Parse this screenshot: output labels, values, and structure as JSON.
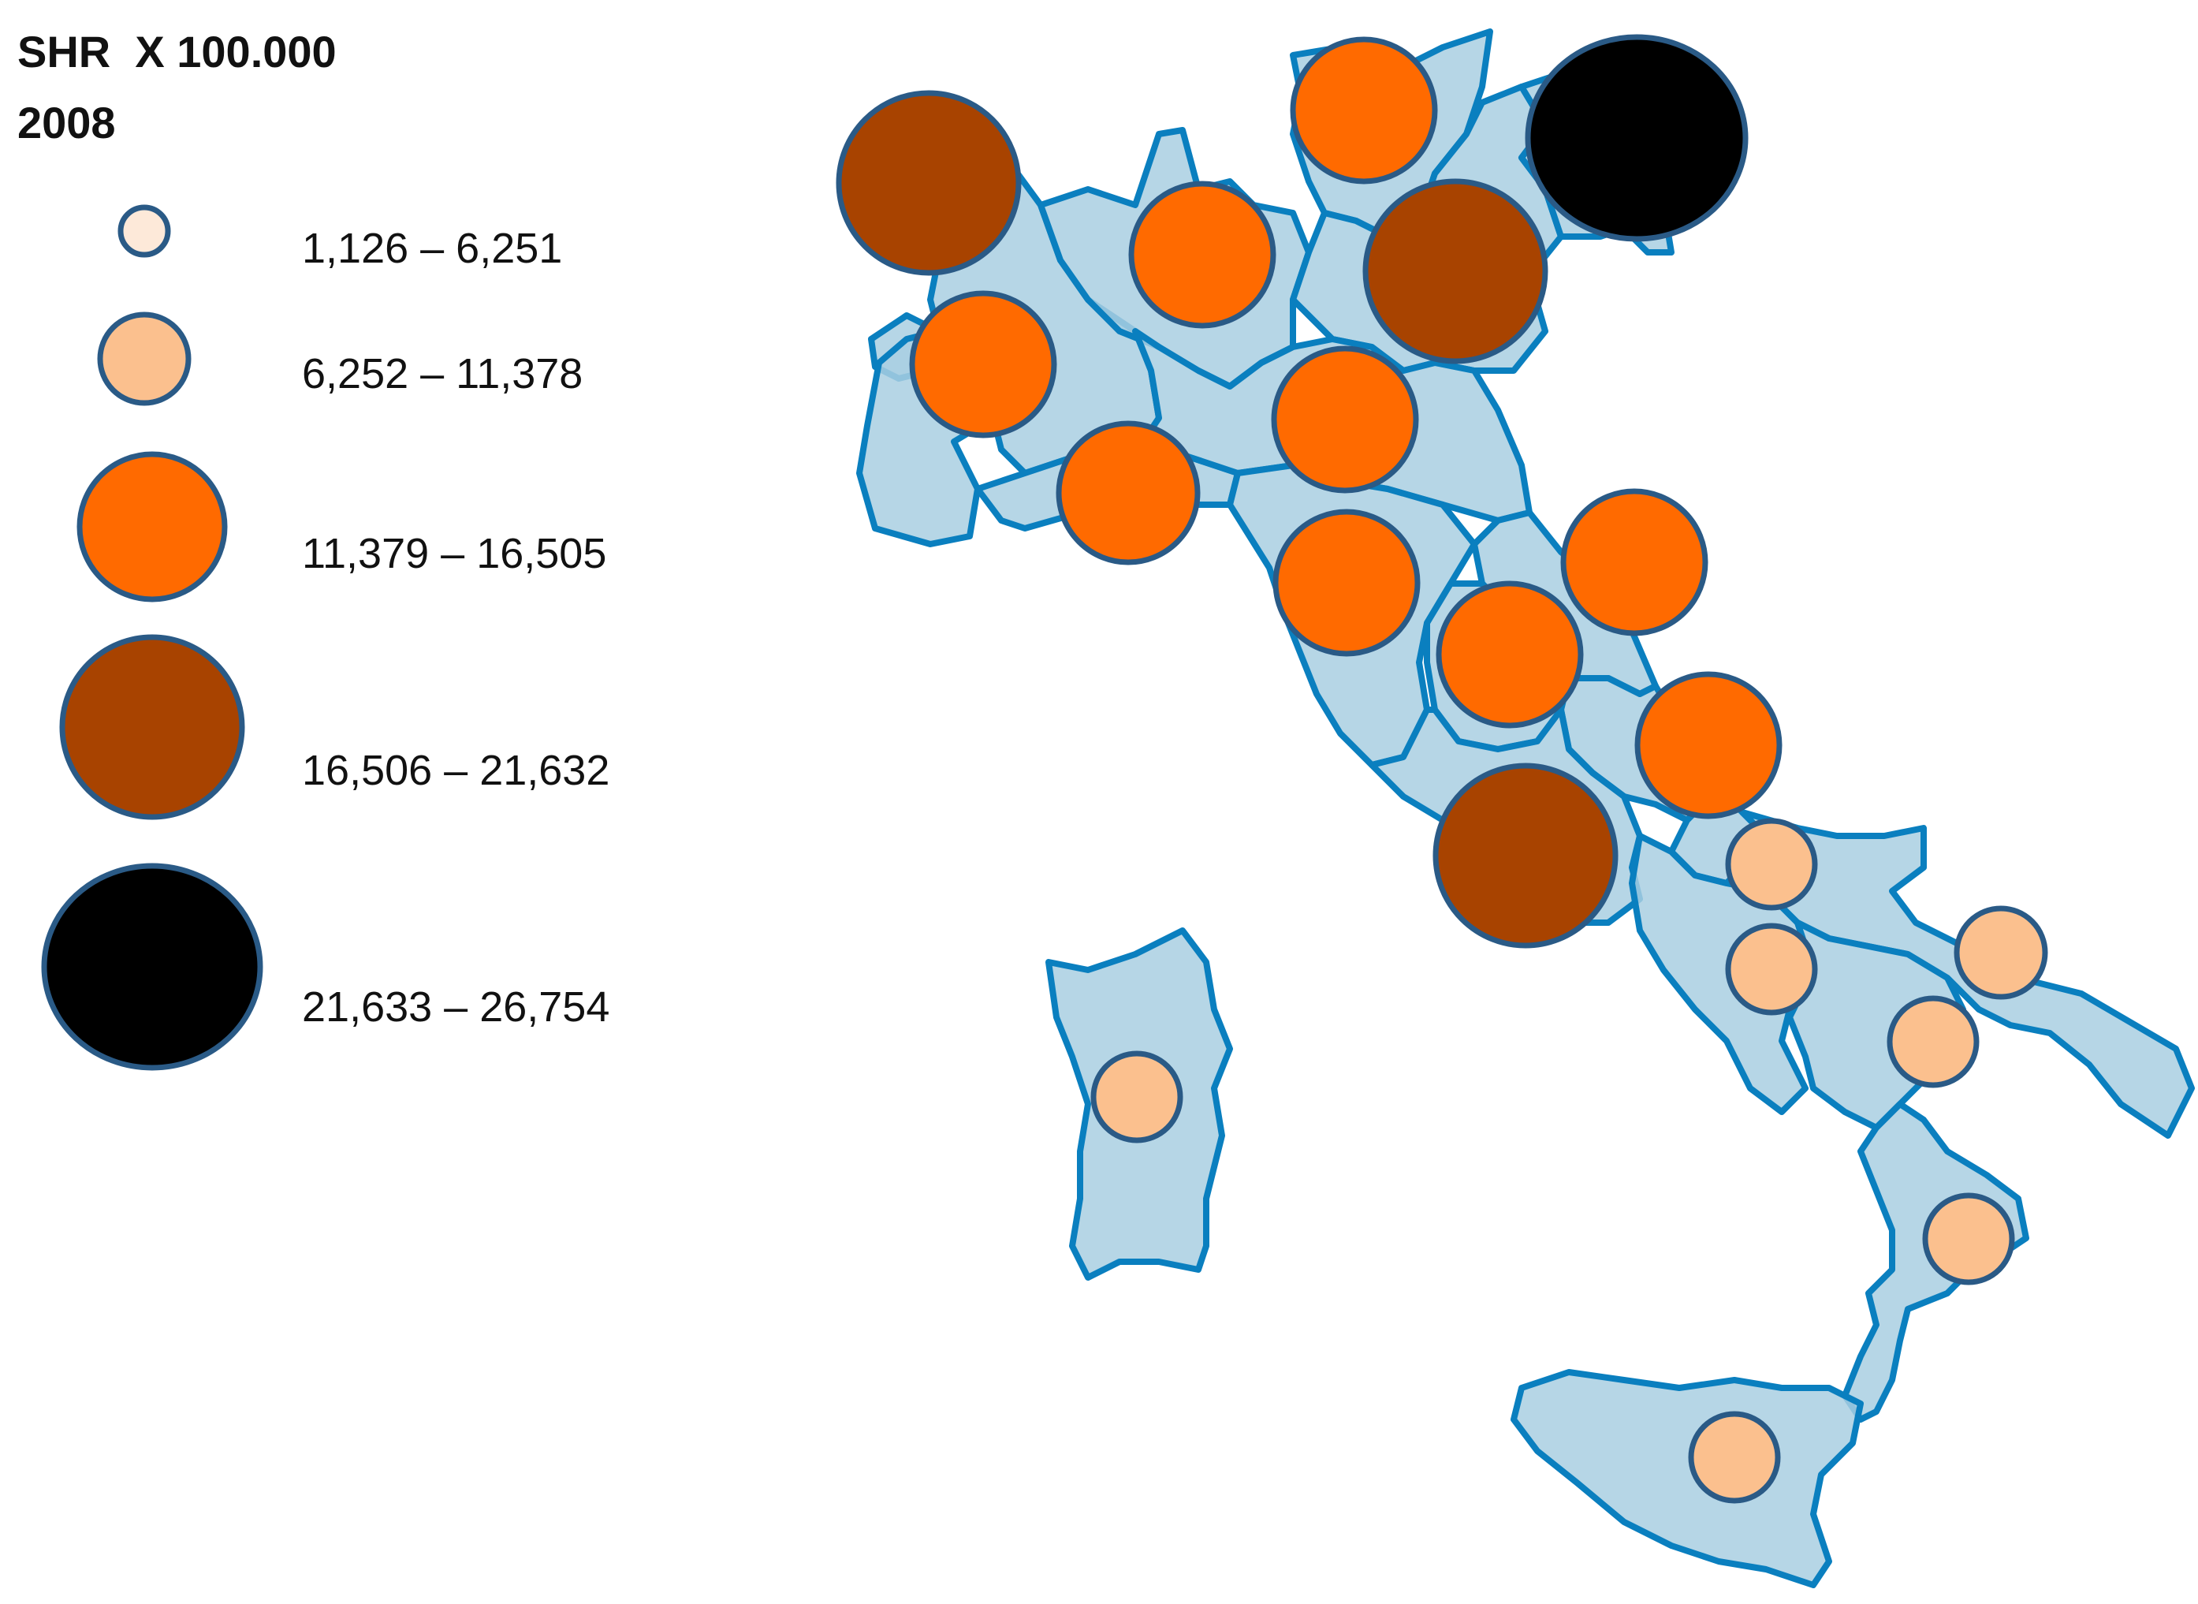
{
  "title": {
    "line1": "SHR  X 100.000",
    "line2": "2008"
  },
  "colors": {
    "region_fill": "#a9cfe2",
    "region_stroke": "#0a7fbf",
    "circle_stroke": "#2a5a86",
    "class_1": "#fde9d9",
    "class_2": "#fbc08e",
    "class_3": "#ff6a00",
    "class_4": "#a84300",
    "class_5": "#000000"
  },
  "legend": [
    {
      "label": "1,126 – 6,251",
      "class": 1
    },
    {
      "label": "6,252 – 11,378",
      "class": 2
    },
    {
      "label": "11,379 – 16,505",
      "class": 3
    },
    {
      "label": "16,506 – 21,632",
      "class": 4
    },
    {
      "label": "21,633 – 26,754",
      "class": 5
    }
  ],
  "map": {
    "country": "Italy",
    "regions": [
      {
        "region": "Valle d'Aosta",
        "class": 4
      },
      {
        "region": "Piemonte",
        "class": 3
      },
      {
        "region": "Liguria",
        "class": 3
      },
      {
        "region": "Lombardia",
        "class": 3
      },
      {
        "region": "Trentino-Alto Adige",
        "class": 3
      },
      {
        "region": "Veneto",
        "class": 4
      },
      {
        "region": "Friuli-Venezia Giulia",
        "class": 5
      },
      {
        "region": "Emilia-Romagna",
        "class": 3
      },
      {
        "region": "Toscana",
        "class": 3
      },
      {
        "region": "Marche",
        "class": 3
      },
      {
        "region": "Umbria",
        "class": 3
      },
      {
        "region": "Abruzzo",
        "class": 3
      },
      {
        "region": "Lazio",
        "class": 4
      },
      {
        "region": "Molise",
        "class": 2
      },
      {
        "region": "Campania",
        "class": 2
      },
      {
        "region": "Puglia",
        "class": 2
      },
      {
        "region": "Basilicata",
        "class": 2
      },
      {
        "region": "Calabria",
        "class": 2
      },
      {
        "region": "Sicilia",
        "class": 2
      },
      {
        "region": "Sardegna",
        "class": 2
      }
    ]
  }
}
